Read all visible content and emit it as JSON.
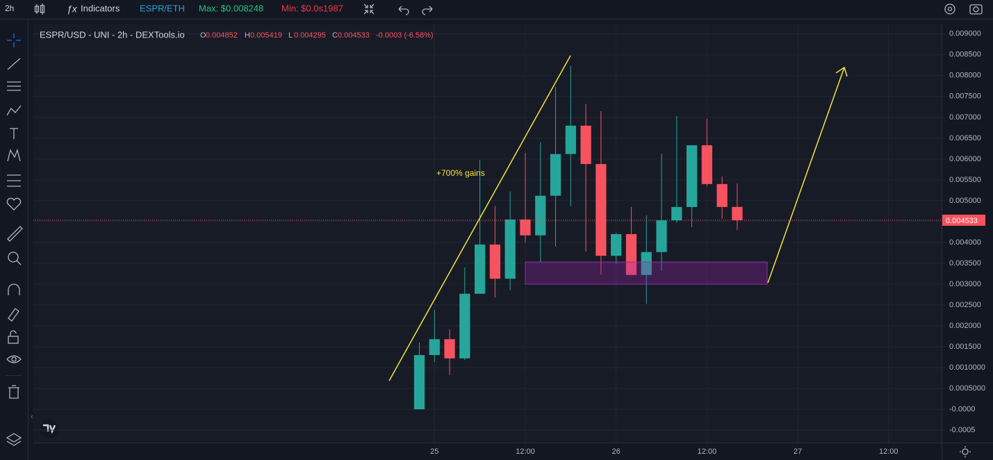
{
  "toolbar": {
    "interval": "2h",
    "indicators": "Indicators",
    "pair": "ESPR/ETH",
    "max": "Max: $0.008248",
    "min": "Min: $0.0s1987"
  },
  "chart_data": {
    "type": "candlestick",
    "title": "ESPR/USD - UNI - 2h - DEXTools.io",
    "ohlc_labels": [
      "O",
      "H",
      "L",
      "C"
    ],
    "change": "-0.0003 (-6.58%)",
    "annotation": "+700% gains",
    "up_color": "#26a69a",
    "down_color": "#f7525f",
    "x": [
      -2,
      0,
      2,
      4,
      6,
      8,
      10,
      12,
      14,
      16,
      18,
      20,
      22,
      24,
      26,
      28,
      30,
      32,
      34,
      36,
      38,
      40
    ],
    "open": [
      0.0,
      0.0013,
      0.00168,
      0.00122,
      0.00277,
      0.00395,
      0.00313,
      0.00455,
      0.00417,
      0.00512,
      0.00612,
      0.0068,
      0.00588,
      0.00368,
      0.0042,
      0.00322,
      0.00377,
      0.00453,
      0.00485,
      0.00633,
      0.0054,
      0.004852
    ],
    "high": [
      0.0016,
      0.00238,
      0.00192,
      0.0034,
      0.00598,
      0.00487,
      0.00522,
      0.00615,
      0.0064,
      0.00773,
      0.00823,
      0.00732,
      0.00715,
      0.00423,
      0.00485,
      0.00465,
      0.00613,
      0.00703,
      0.00633,
      0.00697,
      0.00558,
      0.005419
    ],
    "low": [
      0.0,
      0.00113,
      0.00082,
      0.00118,
      0.00277,
      0.00268,
      0.00285,
      0.004,
      0.00352,
      0.0039,
      0.00487,
      0.00378,
      0.00323,
      0.00348,
      0.00322,
      0.00253,
      0.00332,
      0.00448,
      0.00437,
      0.00535,
      0.00457,
      0.004295
    ],
    "close": [
      0.0013,
      0.00168,
      0.00122,
      0.00277,
      0.00395,
      0.00313,
      0.00455,
      0.00417,
      0.00512,
      0.00612,
      0.0068,
      0.00588,
      0.00368,
      0.0042,
      0.00322,
      0.00377,
      0.00453,
      0.00485,
      0.00633,
      0.0054,
      0.00485,
      0.004533
    ],
    "xlim": [
      -53,
      67
    ],
    "xticks": [
      {
        "value": 0,
        "label": "25"
      },
      {
        "value": 12,
        "label": "12:00"
      },
      {
        "value": 24,
        "label": "26"
      },
      {
        "value": 36,
        "label": "12:00"
      },
      {
        "value": 48,
        "label": "27"
      },
      {
        "value": 60,
        "label": "12:00"
      }
    ],
    "ylim": [
      -0.0008,
      0.00923
    ],
    "yticks": [
      {
        "value": 0.009,
        "label": "0.009000"
      },
      {
        "value": 0.0085,
        "label": "0.008500"
      },
      {
        "value": 0.008,
        "label": "0.008000"
      },
      {
        "value": 0.0075,
        "label": "0.007500"
      },
      {
        "value": 0.007,
        "label": "0.007000"
      },
      {
        "value": 0.0065,
        "label": "0.006500"
      },
      {
        "value": 0.006,
        "label": "0.006000"
      },
      {
        "value": 0.0055,
        "label": "0.005500"
      },
      {
        "value": 0.005,
        "label": "0.005000"
      },
      {
        "value": 0.0045,
        "label": "0.004500"
      },
      {
        "value": 0.004,
        "label": "0.004000"
      },
      {
        "value": 0.0035,
        "label": "0.003500"
      },
      {
        "value": 0.003,
        "label": "0.003000"
      },
      {
        "value": 0.0025,
        "label": "0.002500"
      },
      {
        "value": 0.002,
        "label": "0.002000"
      },
      {
        "value": 0.0015,
        "label": "0.001500"
      },
      {
        "value": 0.001,
        "label": "0.0010000"
      },
      {
        "value": 0.0005,
        "label": "0.0005000"
      },
      {
        "value": 0,
        "label": "-0.0000"
      },
      {
        "value": -0.0005,
        "label": "-0.0005"
      }
    ],
    "grid": true
  }
}
